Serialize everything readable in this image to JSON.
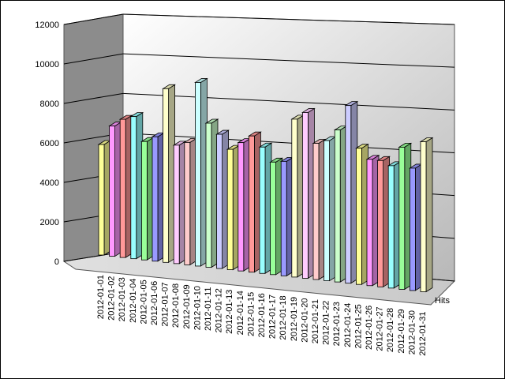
{
  "chart_data": {
    "type": "bar",
    "style": "3d",
    "title": "",
    "xlabel": "",
    "ylabel": "",
    "ylim": [
      0,
      12000
    ],
    "yticks": [
      0,
      2000,
      4000,
      6000,
      8000,
      10000,
      12000
    ],
    "grid": true,
    "categories": [
      "2012-01-01",
      "2012-01-02",
      "2012-01-03",
      "2012-01-04",
      "2012-01-05",
      "2012-01-06",
      "2012-01-07",
      "2012-01-08",
      "2012-01-09",
      "2012-01-10",
      "2012-01-11",
      "2012-01-12",
      "2012-01-13",
      "2012-01-14",
      "2012-01-15",
      "2012-01-16",
      "2012-01-17",
      "2012-01-18",
      "2012-01-19",
      "2012-01-20",
      "2012-01-21",
      "2012-01-22",
      "2012-01-23",
      "2012-01-24",
      "2012-01-25",
      "2012-01-26",
      "2012-01-27",
      "2012-01-28",
      "2012-01-29",
      "2012-01-30",
      "2012-01-31"
    ],
    "series": [
      {
        "name": "Hits",
        "values": [
          5600,
          6600,
          7000,
          7200,
          6000,
          6300,
          8800,
          6000,
          6200,
          9300,
          7300,
          6800,
          6100,
          6500,
          6900,
          6400,
          5700,
          5800,
          8000,
          8400,
          6900,
          7100,
          7700,
          9000,
          6900,
          6400,
          6400,
          6200,
          7200,
          6200,
          7600
        ]
      }
    ],
    "series_label": "Hits",
    "palette": [
      "#ffff99",
      "#ff99ff",
      "#ff9999",
      "#99ffff",
      "#99ff99",
      "#9999ff",
      "#ffffcc",
      "#ffccff",
      "#ffcccc",
      "#ccffff",
      "#ccffcc",
      "#ccccff"
    ]
  }
}
